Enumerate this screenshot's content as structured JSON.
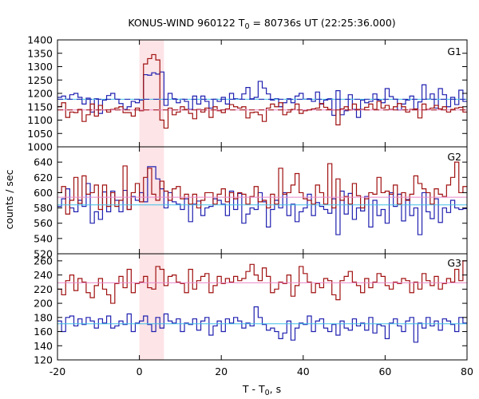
{
  "chart_data": {
    "type": "line",
    "title": {
      "prefix": "KONUS-WIND 960122 T",
      "sub": "0",
      "suffix": " = 80736s UT (22:25:36.000)"
    },
    "xlabel": {
      "prefix": "T - T",
      "sub": "0",
      "suffix": ", s"
    },
    "ylabel": "counts / sec",
    "xlim": [
      -20,
      80
    ],
    "x_ticks": [
      -20,
      0,
      20,
      40,
      60,
      80
    ],
    "x_tick_labels": [
      "-20",
      "0",
      "20",
      "40",
      "60",
      "80"
    ],
    "highlight": {
      "x0": 0,
      "x1": 6,
      "color": "#fde4e6"
    },
    "colors": {
      "dark_red": "#a01010",
      "blue": "#2020b0",
      "cyan": "#40c0e8",
      "pink": "#e888c8",
      "frame": "#000000"
    },
    "bin_width": 1,
    "bin_start": -20,
    "panels": [
      {
        "name": "G1",
        "ylim": [
          1000,
          1400
        ],
        "yticks": [
          1000,
          1050,
          1100,
          1150,
          1200,
          1250,
          1300,
          1350,
          1400
        ],
        "ytick_labels": [
          "1000",
          "1050",
          "1100",
          "1150",
          "1200",
          "1250",
          "1300",
          "1350",
          "1400"
        ],
        "series": [
          {
            "color": "#2020b0",
            "values": [
              1185,
              1190,
              1178,
              1195,
              1200,
              1185,
              1160,
              1182,
              1130,
              1180,
              1125,
              1175,
              1192,
              1200,
              1178,
              1162,
              1140,
              1150,
              1170,
              1165,
              1175,
              1270,
              1268,
              1277,
              1272,
              1280,
              1155,
              1200,
              1180,
              1165,
              1178,
              1170,
              1140,
              1190,
              1160,
              1190,
              1170,
              1145,
              1178,
              1170,
              1185,
              1160,
              1200,
              1180,
              1178,
              1198,
              1222,
              1180,
              1185,
              1245,
              1220,
              1198,
              1175,
              1180,
              1150,
              1165,
              1180,
              1165,
              1190,
              1200,
              1178,
              1180,
              1170,
              1205,
              1160,
              1175,
              1180,
              1118,
              1210,
              1120,
              1135,
              1195,
              1140,
              1110,
              1175,
              1165,
              1170,
              1198,
              1175,
              1165,
              1218,
              1188,
              1178,
              1138,
              1160,
              1175,
              1190,
              1140,
              1168,
              1232,
              1178,
              1198,
              1145,
              1218,
              1195,
              1150,
              1185,
              1158,
              1212,
              1170
            ]
          },
          {
            "color": "#a01010",
            "values": [
              1150,
              1165,
              1110,
              1130,
              1128,
              1140,
              1095,
              1120,
              1160,
              1115,
              1155,
              1138,
              1130,
              1140,
              1145,
              1150,
              1128,
              1128,
              1115,
              1145,
              1135,
              1310,
              1330,
              1345,
              1325,
              1100,
              1070,
              1145,
              1120,
              1130,
              1150,
              1140,
              1125,
              1105,
              1140,
              1130,
              1145,
              1110,
              1150,
              1135,
              1128,
              1142,
              1158,
              1150,
              1145,
              1150,
              1108,
              1128,
              1130,
              1120,
              1095,
              1145,
              1160,
              1150,
              1165,
              1120,
              1130,
              1140,
              1160,
              1125,
              1135,
              1138,
              1142,
              1145,
              1162,
              1148,
              1140,
              1138,
              1082,
              1142,
              1150,
              1138,
              1160,
              1140,
              1140,
              1148,
              1160,
              1140,
              1170,
              1145,
              1155,
              1140,
              1150,
              1162,
              1150,
              1130,
              1140,
              1142,
              1108,
              1160,
              1140,
              1145,
              1155,
              1142,
              1150,
              1130,
              1140,
              1145,
              1148,
              1130
            ]
          }
        ],
        "fit_lines": [
          {
            "color": "#40c0e8",
            "value": 1178
          },
          {
            "color": "#2020b0",
            "value": 1178,
            "dashed": true
          },
          {
            "color": "#e888c8",
            "value": 1138
          },
          {
            "color": "#a01010",
            "value": 1138,
            "dashed": true
          }
        ]
      },
      {
        "name": "G2",
        "ylim": [
          520,
          660
        ],
        "yticks": [
          520,
          540,
          560,
          580,
          600,
          620,
          640
        ],
        "ytick_labels": [
          "520",
          "540",
          "560",
          "580",
          "600",
          "620",
          "640"
        ],
        "series": [
          {
            "color": "#2020b0",
            "values": [
              582,
              592,
              605,
              580,
              575,
              590,
              582,
              612,
              560,
              575,
              565,
              601,
              575,
              602,
              590,
              575,
              603,
              578,
              595,
              590,
              600,
              588,
              634,
              634,
              618,
              605,
              580,
              600,
              588,
              585,
              578,
              592,
              562,
              585,
              589,
              570,
              580,
              582,
              592,
              590,
              585,
              570,
              602,
              578,
              599,
              560,
              572,
              580,
              578,
              600,
              588,
              555,
              578,
              590,
              580,
              600,
              570,
              585,
              562,
              575,
              580,
              598,
              570,
              587,
              582,
              578,
              573,
              592,
              545,
              602,
              572,
              599,
              565,
              580,
              576,
              595,
              555,
              590,
              570,
              578,
              560,
              600,
              582,
              598,
              563,
              591,
              570,
              580,
              545,
              600,
              575,
              566,
              592,
              561,
              580,
              574,
              590,
              580,
              578,
              579
            ]
          },
          {
            "color": "#a01010",
            "values": [
              600,
              608,
              572,
              590,
              620,
              586,
              622,
              598,
              600,
              610,
              578,
              610,
              582,
              600,
              582,
              590,
              635,
              578,
              600,
              612,
              588,
              620,
              632,
              598,
              590,
              615,
              602,
              590,
              605,
              608,
              592,
              598,
              585,
              598,
              580,
              590,
              600,
              600,
              585,
              598,
              605,
              588,
              600,
              592,
              600,
              598,
              585,
              595,
              608,
              588,
              590,
              580,
              598,
              585,
              632,
              598,
              600,
              610,
              625,
              600,
              592,
              590,
              585,
              610,
              600,
              585,
              638,
              580,
              618,
              590,
              595,
              585,
              612,
              596,
              580,
              592,
              600,
              598,
              620,
              600,
              602,
              598,
              610,
              585,
              600,
              590,
              598,
              622,
              612,
              605,
              600,
              585,
              605,
              598,
              595,
              610,
              620,
              640,
              600,
              608
            ]
          }
        ],
        "fit_lines": [
          {
            "color": "#40c0e8",
            "value": 584
          },
          {
            "color": "#e888c8",
            "value": 594
          }
        ]
      },
      {
        "name": "G3",
        "ylim": [
          120,
          270
        ],
        "yticks": [
          120,
          140,
          160,
          180,
          200,
          220,
          240,
          260
        ],
        "ytick_labels": [
          "120",
          "140",
          "160",
          "180",
          "200",
          "220",
          "240",
          "260"
        ],
        "series": [
          {
            "color": "#2020b0",
            "values": [
              175,
              160,
              180,
              182,
              168,
              178,
              170,
              180,
              175,
              165,
              178,
              172,
              182,
              165,
              168,
              175,
              170,
              185,
              160,
              172,
              175,
              182,
              170,
              160,
              180,
              165,
              185,
              175,
              172,
              178,
              160,
              172,
              170,
              178,
              162,
              175,
              180,
              155,
              168,
              175,
              160,
              178,
              172,
              180,
              175,
              165,
              172,
              168,
              195,
              180,
              170,
              162,
              165,
              160,
              150,
              158,
              175,
              148,
              165,
              172,
              170,
              182,
              160,
              175,
              178,
              165,
              160,
              170,
              155,
              175,
              165,
              162,
              178,
              168,
              172,
              162,
              180,
              158,
              170,
              168,
              150,
              172,
              178,
              168,
              160,
              175,
              180,
              145,
              172,
              165,
              180,
              168,
              175,
              162,
              178,
              175,
              170,
              160,
              180,
              172
            ]
          },
          {
            "color": "#a01010",
            "values": [
              220,
              212,
              232,
              240,
              218,
              235,
              230,
              215,
              208,
              225,
              235,
              220,
              212,
              200,
              228,
              238,
              222,
              248,
              215,
              228,
              230,
              238,
              222,
              220,
              252,
              248,
              225,
              238,
              240,
              230,
              228,
              215,
              248,
              220,
              232,
              238,
              242,
              215,
              225,
              238,
              228,
              235,
              230,
              238,
              232,
              235,
              245,
              255,
              240,
              232,
              250,
              238,
              215,
              220,
              230,
              228,
              240,
              210,
              225,
              252,
              242,
              230,
              215,
              228,
              222,
              235,
              232,
              212,
              205,
              232,
              238,
              245,
              230,
              225,
              215,
              235,
              222,
              230,
              242,
              238,
              225,
              220,
              230,
              228,
              235,
              232,
              215,
              230,
              220,
              242,
              232,
              225,
              238,
              220,
              228,
              235,
              230,
              248,
              232,
              260
            ]
          }
        ],
        "fit_lines": [
          {
            "color": "#40c0e8",
            "value": 171
          },
          {
            "color": "#e888c8",
            "value": 229
          }
        ]
      }
    ]
  }
}
